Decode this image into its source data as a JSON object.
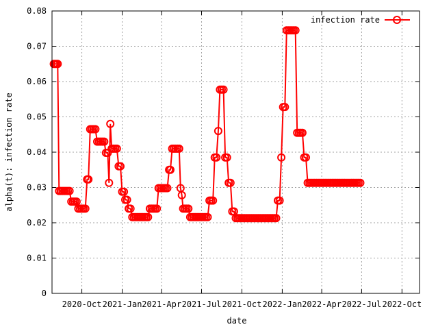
{
  "chart_data": {
    "type": "line",
    "title": "",
    "xlabel": "date",
    "ylabel": "alpha(t): infection rate",
    "ylim": [
      0,
      0.08
    ],
    "xlim": [
      "2020-07-25",
      "2022-11-10"
    ],
    "y_ticks": [
      "0",
      "0.01",
      "0.02",
      "0.03",
      "0.04",
      "0.05",
      "0.06",
      "0.07",
      "0.08"
    ],
    "x_ticks": [
      {
        "date": "2020-10-01",
        "label": "2020-Oct"
      },
      {
        "date": "2021-01-01",
        "label": "2021-Jan"
      },
      {
        "date": "2021-04-01",
        "label": "2021-Apr"
      },
      {
        "date": "2021-07-01",
        "label": "2021-Jul"
      },
      {
        "date": "2021-10-01",
        "label": "2021-Oct"
      },
      {
        "date": "2022-01-01",
        "label": "2022-Jan"
      },
      {
        "date": "2022-04-01",
        "label": "2022-Apr"
      },
      {
        "date": "2022-07-01",
        "label": "2022-Jul"
      },
      {
        "date": "2022-10-01",
        "label": "2022-Oct"
      }
    ],
    "grid": true,
    "legend_position": "top-right",
    "series": [
      {
        "name": "infection rate",
        "color": "#ff0000",
        "marker": "open-circle",
        "points": [
          [
            "2020-07-29",
            0.065
          ],
          [
            "2020-08-01",
            0.065
          ],
          [
            "2020-08-04",
            0.065
          ],
          [
            "2020-08-07",
            0.065
          ],
          [
            "2020-08-10",
            0.029
          ],
          [
            "2020-08-14",
            0.029
          ],
          [
            "2020-08-18",
            0.029
          ],
          [
            "2020-08-22",
            0.029
          ],
          [
            "2020-08-26",
            0.029
          ],
          [
            "2020-08-30",
            0.029
          ],
          [
            "2020-09-03",
            0.029
          ],
          [
            "2020-09-07",
            0.026
          ],
          [
            "2020-09-11",
            0.026
          ],
          [
            "2020-09-15",
            0.026
          ],
          [
            "2020-09-19",
            0.026
          ],
          [
            "2020-09-23",
            0.024
          ],
          [
            "2020-09-27",
            0.024
          ],
          [
            "2020-10-01",
            0.024
          ],
          [
            "2020-10-05",
            0.024
          ],
          [
            "2020-10-09",
            0.024
          ],
          [
            "2020-10-13",
            0.0323
          ],
          [
            "2020-10-16",
            0.0323
          ],
          [
            "2020-10-20",
            0.0465
          ],
          [
            "2020-10-24",
            0.0465
          ],
          [
            "2020-10-28",
            0.0465
          ],
          [
            "2020-11-01",
            0.0465
          ],
          [
            "2020-11-05",
            0.043
          ],
          [
            "2020-11-09",
            0.043
          ],
          [
            "2020-11-13",
            0.043
          ],
          [
            "2020-11-17",
            0.043
          ],
          [
            "2020-11-21",
            0.043
          ],
          [
            "2020-11-25",
            0.0398
          ],
          [
            "2020-11-29",
            0.0398
          ],
          [
            "2020-12-02",
            0.0313
          ],
          [
            "2020-12-05",
            0.048
          ],
          [
            "2020-12-08",
            0.041
          ],
          [
            "2020-12-12",
            0.041
          ],
          [
            "2020-12-16",
            0.041
          ],
          [
            "2020-12-20",
            0.041
          ],
          [
            "2020-12-24",
            0.036
          ],
          [
            "2020-12-28",
            0.036
          ],
          [
            "2021-01-01",
            0.0288
          ],
          [
            "2021-01-05",
            0.0288
          ],
          [
            "2021-01-08",
            0.0265
          ],
          [
            "2021-01-12",
            0.0265
          ],
          [
            "2021-01-16",
            0.024
          ],
          [
            "2021-01-20",
            0.024
          ],
          [
            "2021-01-24",
            0.0216
          ],
          [
            "2021-01-28",
            0.0216
          ],
          [
            "2021-02-01",
            0.0216
          ],
          [
            "2021-02-05",
            0.0216
          ],
          [
            "2021-02-09",
            0.0216
          ],
          [
            "2021-02-13",
            0.0216
          ],
          [
            "2021-02-17",
            0.0216
          ],
          [
            "2021-02-21",
            0.0216
          ],
          [
            "2021-02-25",
            0.0216
          ],
          [
            "2021-03-01",
            0.0216
          ],
          [
            "2021-03-05",
            0.024
          ],
          [
            "2021-03-09",
            0.024
          ],
          [
            "2021-03-13",
            0.024
          ],
          [
            "2021-03-17",
            0.024
          ],
          [
            "2021-03-21",
            0.024
          ],
          [
            "2021-03-25",
            0.0298
          ],
          [
            "2021-03-29",
            0.0298
          ],
          [
            "2021-04-02",
            0.0298
          ],
          [
            "2021-04-06",
            0.0298
          ],
          [
            "2021-04-10",
            0.0298
          ],
          [
            "2021-04-14",
            0.0298
          ],
          [
            "2021-04-18",
            0.035
          ],
          [
            "2021-04-21",
            0.035
          ],
          [
            "2021-04-25",
            0.041
          ],
          [
            "2021-04-29",
            0.041
          ],
          [
            "2021-05-03",
            0.041
          ],
          [
            "2021-05-07",
            0.041
          ],
          [
            "2021-05-11",
            0.041
          ],
          [
            "2021-05-14",
            0.0298
          ],
          [
            "2021-05-17",
            0.0278
          ],
          [
            "2021-05-20",
            0.024
          ],
          [
            "2021-05-24",
            0.024
          ],
          [
            "2021-05-28",
            0.024
          ],
          [
            "2021-06-01",
            0.024
          ],
          [
            "2021-06-05",
            0.0216
          ],
          [
            "2021-06-09",
            0.0216
          ],
          [
            "2021-06-13",
            0.0216
          ],
          [
            "2021-06-17",
            0.0216
          ],
          [
            "2021-06-21",
            0.0216
          ],
          [
            "2021-06-25",
            0.0216
          ],
          [
            "2021-06-29",
            0.0216
          ],
          [
            "2021-07-03",
            0.0216
          ],
          [
            "2021-07-07",
            0.0216
          ],
          [
            "2021-07-11",
            0.0216
          ],
          [
            "2021-07-15",
            0.0216
          ],
          [
            "2021-07-19",
            0.0263
          ],
          [
            "2021-07-23",
            0.0263
          ],
          [
            "2021-07-27",
            0.0263
          ],
          [
            "2021-07-31",
            0.0385
          ],
          [
            "2021-08-04",
            0.0385
          ],
          [
            "2021-08-08",
            0.046
          ],
          [
            "2021-08-12",
            0.0577
          ],
          [
            "2021-08-16",
            0.0577
          ],
          [
            "2021-08-20",
            0.0577
          ],
          [
            "2021-08-24",
            0.0385
          ],
          [
            "2021-08-28",
            0.0385
          ],
          [
            "2021-09-01",
            0.0313
          ],
          [
            "2021-09-05",
            0.0313
          ],
          [
            "2021-09-09",
            0.0232
          ],
          [
            "2021-09-13",
            0.0232
          ],
          [
            "2021-09-17",
            0.0213
          ],
          [
            "2021-09-21",
            0.0213
          ],
          [
            "2021-09-25",
            0.0213
          ],
          [
            "2021-09-29",
            0.0213
          ],
          [
            "2021-10-03",
            0.0213
          ],
          [
            "2021-10-07",
            0.0213
          ],
          [
            "2021-10-11",
            0.0213
          ],
          [
            "2021-10-15",
            0.0213
          ],
          [
            "2021-10-19",
            0.0213
          ],
          [
            "2021-10-23",
            0.0213
          ],
          [
            "2021-10-27",
            0.0213
          ],
          [
            "2021-10-31",
            0.0213
          ],
          [
            "2021-11-04",
            0.0213
          ],
          [
            "2021-11-08",
            0.0213
          ],
          [
            "2021-11-12",
            0.0213
          ],
          [
            "2021-11-16",
            0.0213
          ],
          [
            "2021-11-20",
            0.0213
          ],
          [
            "2021-11-24",
            0.0213
          ],
          [
            "2021-11-28",
            0.0213
          ],
          [
            "2021-12-02",
            0.0213
          ],
          [
            "2021-12-06",
            0.0213
          ],
          [
            "2021-12-10",
            0.0213
          ],
          [
            "2021-12-14",
            0.0213
          ],
          [
            "2021-12-18",
            0.0213
          ],
          [
            "2021-12-22",
            0.0263
          ],
          [
            "2021-12-26",
            0.0263
          ],
          [
            "2021-12-30",
            0.0385
          ],
          [
            "2022-01-03",
            0.0528
          ],
          [
            "2022-01-07",
            0.0528
          ],
          [
            "2022-01-11",
            0.0745
          ],
          [
            "2022-01-15",
            0.0745
          ],
          [
            "2022-01-19",
            0.0745
          ],
          [
            "2022-01-23",
            0.0745
          ],
          [
            "2022-01-27",
            0.0745
          ],
          [
            "2022-01-31",
            0.0745
          ],
          [
            "2022-02-04",
            0.0455
          ],
          [
            "2022-02-08",
            0.0455
          ],
          [
            "2022-02-12",
            0.0455
          ],
          [
            "2022-02-16",
            0.0455
          ],
          [
            "2022-02-20",
            0.0385
          ],
          [
            "2022-02-24",
            0.0385
          ],
          [
            "2022-02-28",
            0.0313
          ],
          [
            "2022-03-04",
            0.0313
          ],
          [
            "2022-03-08",
            0.0313
          ],
          [
            "2022-03-12",
            0.0313
          ],
          [
            "2022-03-16",
            0.0313
          ],
          [
            "2022-03-20",
            0.0313
          ],
          [
            "2022-03-24",
            0.0313
          ],
          [
            "2022-03-28",
            0.0313
          ],
          [
            "2022-04-01",
            0.0313
          ],
          [
            "2022-04-05",
            0.0313
          ],
          [
            "2022-04-09",
            0.0313
          ],
          [
            "2022-04-13",
            0.0313
          ],
          [
            "2022-04-17",
            0.0313
          ],
          [
            "2022-04-21",
            0.0313
          ],
          [
            "2022-04-25",
            0.0313
          ],
          [
            "2022-04-29",
            0.0313
          ],
          [
            "2022-05-03",
            0.0313
          ],
          [
            "2022-05-07",
            0.0313
          ],
          [
            "2022-05-11",
            0.0313
          ],
          [
            "2022-05-15",
            0.0313
          ],
          [
            "2022-05-19",
            0.0313
          ],
          [
            "2022-05-23",
            0.0313
          ],
          [
            "2022-05-27",
            0.0313
          ],
          [
            "2022-05-31",
            0.0313
          ],
          [
            "2022-06-04",
            0.0313
          ],
          [
            "2022-06-08",
            0.0313
          ],
          [
            "2022-06-12",
            0.0313
          ],
          [
            "2022-06-16",
            0.0313
          ],
          [
            "2022-06-20",
            0.0313
          ],
          [
            "2022-06-24",
            0.0313
          ],
          [
            "2022-06-28",
            0.0313
          ]
        ]
      }
    ]
  }
}
